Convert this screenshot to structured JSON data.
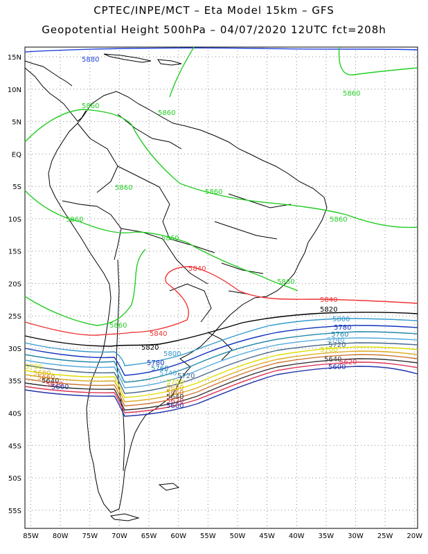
{
  "title": {
    "line1": "CPTEC/INPE/MCT –  Eta Model 15km – GFS",
    "line2": "Geopotential Height 500hPa – 04/07/2020 12UTC fct=208h"
  },
  "lat_labels": [
    "15N",
    "10N",
    "5N",
    "EQ",
    "5S",
    "10S",
    "15S",
    "20S",
    "25S",
    "30S",
    "35S",
    "40S",
    "45S",
    "50S",
    "55S"
  ],
  "lat_values": [
    15,
    10,
    5,
    0,
    -5,
    -10,
    -15,
    -20,
    -25,
    -30,
    -35,
    -40,
    -45,
    -50,
    -55
  ],
  "lon_labels": [
    "85W",
    "80W",
    "75W",
    "70W",
    "65W",
    "60W",
    "55W",
    "50W",
    "45W",
    "40W",
    "35W",
    "30W",
    "25W",
    "20W"
  ],
  "lon_values": [
    -85,
    -80,
    -75,
    -70,
    -65,
    -60,
    -55,
    -50,
    -45,
    -40,
    -35,
    -30,
    -25,
    -20
  ],
  "colors": {
    "c5880": "#2244dd",
    "c5860": "#22cc22",
    "c5840": "#ee3333",
    "c5820": "#000000",
    "c5800": "#3399cc",
    "c5780": "#1133bb",
    "c5760": "#2288aa",
    "c5740": "#55aadd",
    "c5720": "#446688",
    "c5700": "#dddd00",
    "c5680": "#ddaa22",
    "c5660": "#cc7733",
    "c5640": "#333333",
    "c5620": "#dd3355",
    "c5600": "#2233aa"
  },
  "contours": [
    {
      "level": "5880",
      "color_key": "c5880"
    },
    {
      "level": "5860",
      "color_key": "c5860"
    },
    {
      "level": "5840",
      "color_key": "c5840"
    },
    {
      "level": "5820",
      "color_key": "c5820"
    },
    {
      "level": "5800",
      "color_key": "c5800"
    },
    {
      "level": "5780",
      "color_key": "c5780"
    },
    {
      "level": "5760",
      "color_key": "c5760"
    },
    {
      "level": "5740",
      "color_key": "c5740"
    },
    {
      "level": "5720",
      "color_key": "c5720"
    },
    {
      "level": "5700",
      "color_key": "c5700"
    },
    {
      "level": "5680",
      "color_key": "c5680"
    },
    {
      "level": "5660",
      "color_key": "c5660"
    },
    {
      "level": "5640",
      "color_key": "c5640"
    },
    {
      "level": "5620",
      "color_key": "c5620"
    },
    {
      "level": "5600",
      "color_key": "c5600"
    }
  ]
}
